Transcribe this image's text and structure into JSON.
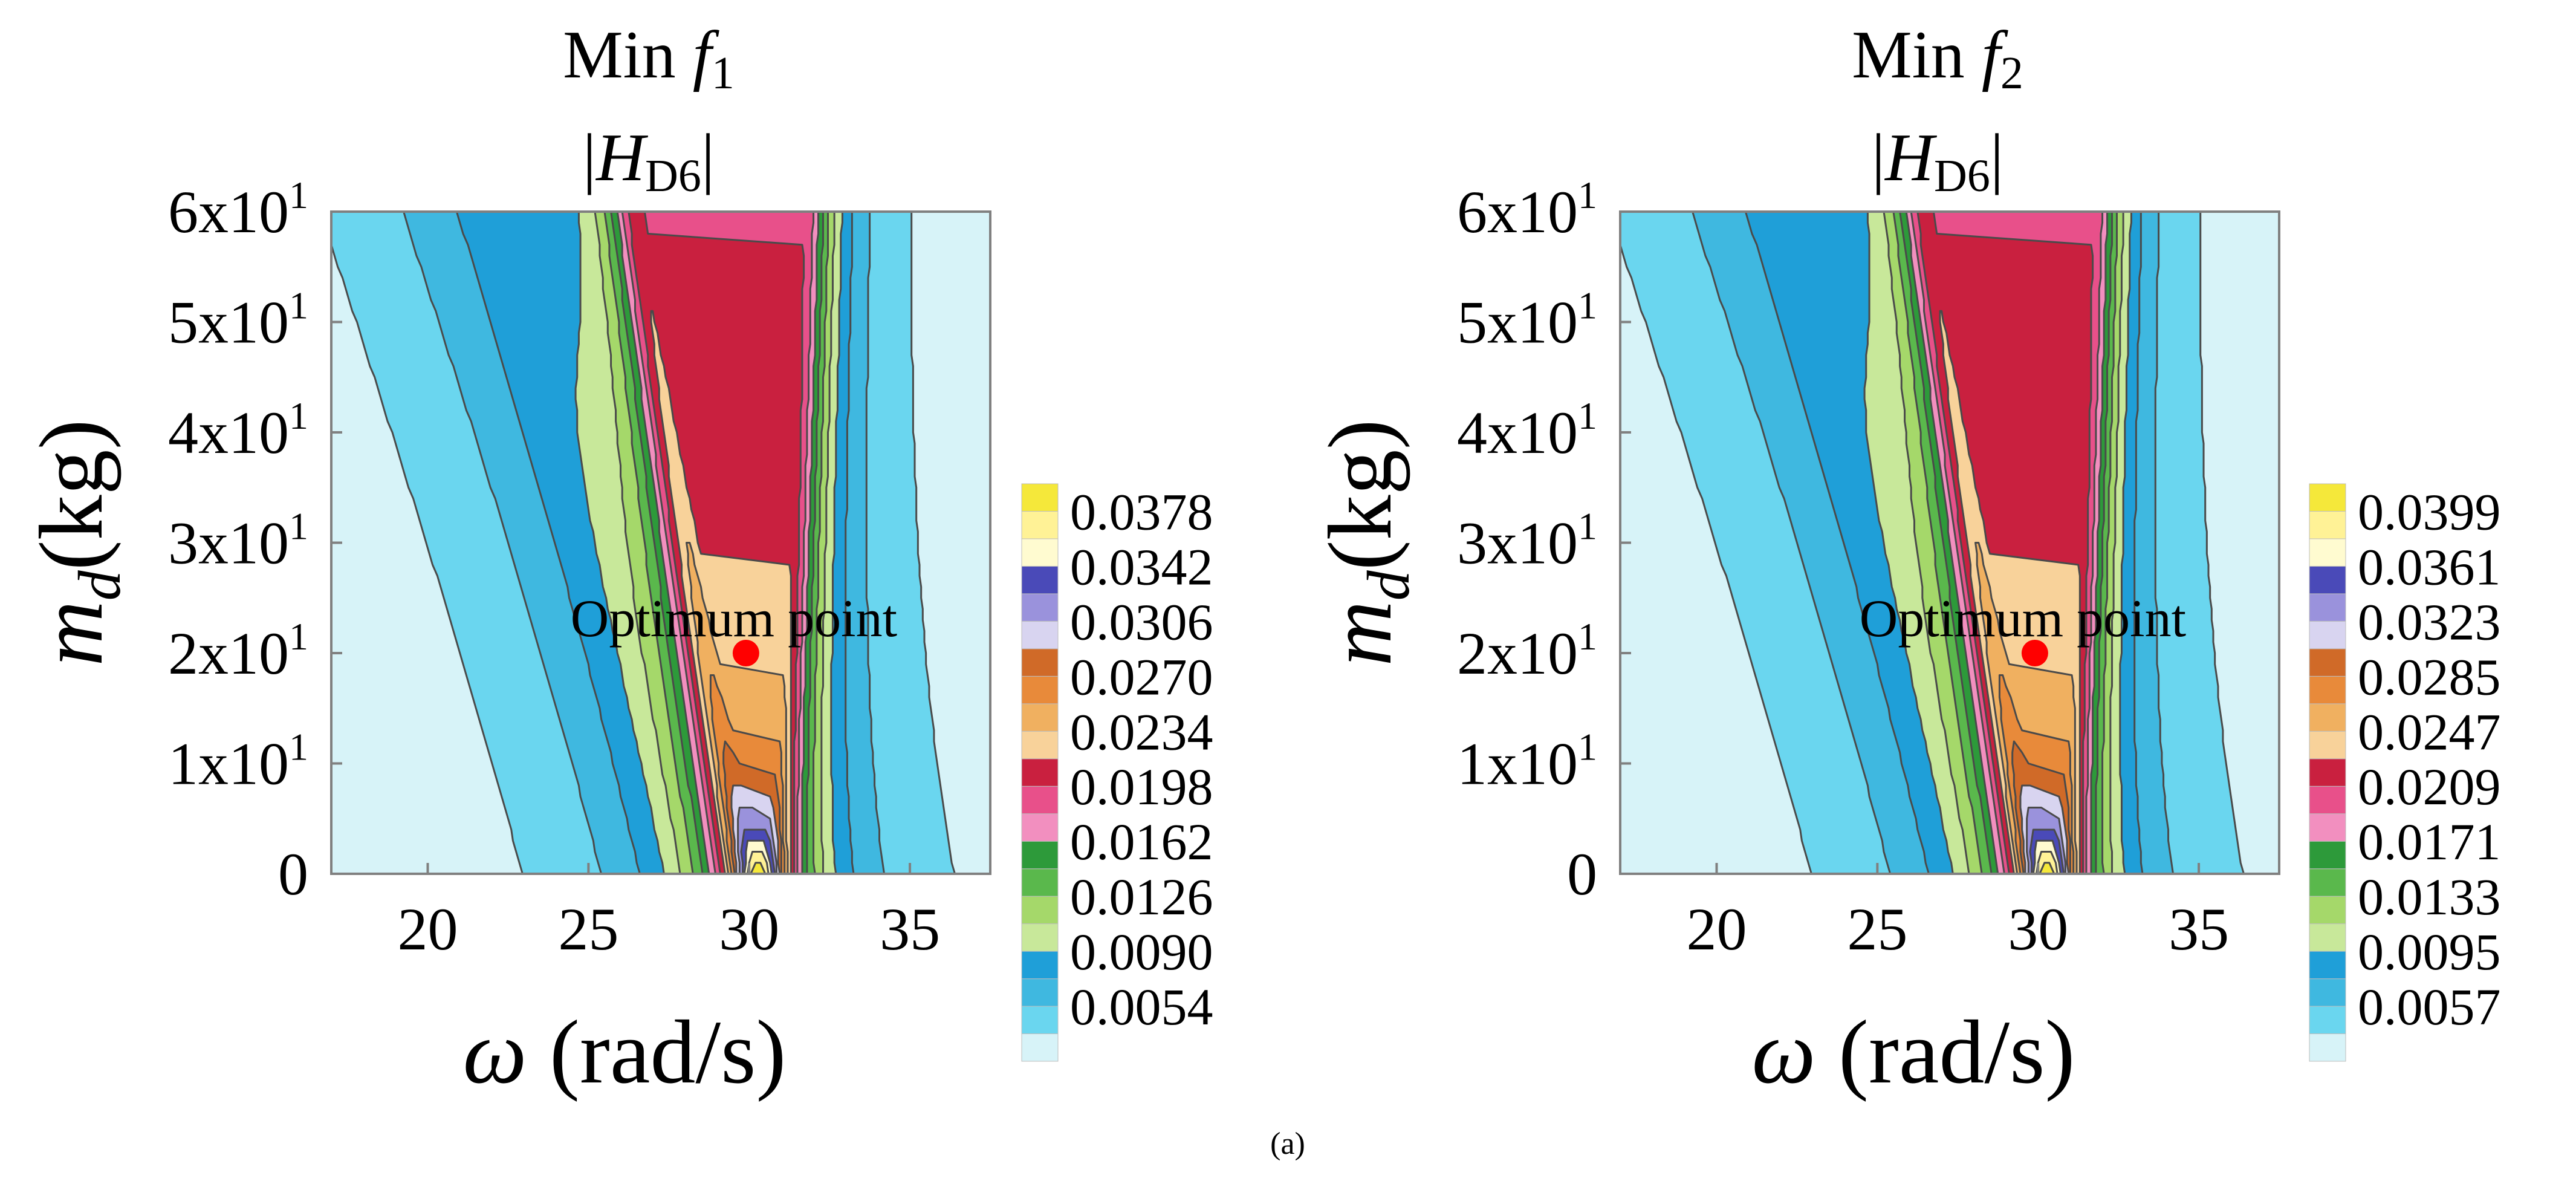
{
  "caption": "(a)",
  "chart_data": [
    {
      "type": "contour",
      "title_line1_main": "Min ",
      "title_line1_var": "f",
      "title_line1_sub": "1",
      "title_line2_open": "|",
      "title_line2_var": "H",
      "title_line2_sub": "D6",
      "title_line2_close": "|",
      "xlabel_var": "ω",
      "xlabel_unit": " (rad/s)",
      "ylabel_var": "m",
      "ylabel_sub": "d",
      "ylabel_unit": "(kg)",
      "xlim": [
        17,
        37.5
      ],
      "ylim": [
        0,
        60
      ],
      "xticks": [
        {
          "value": 20,
          "label": "20"
        },
        {
          "value": 25,
          "label": "25"
        },
        {
          "value": 30,
          "label": "30"
        },
        {
          "value": 35,
          "label": "35"
        }
      ],
      "yticks": [
        {
          "value": 0,
          "label": "0",
          "sup": ""
        },
        {
          "value": 10,
          "label": "1x10",
          "sup": "1"
        },
        {
          "value": 20,
          "label": "2x10",
          "sup": "1"
        },
        {
          "value": 30,
          "label": "3x10",
          "sup": "1"
        },
        {
          "value": 40,
          "label": "4x10",
          "sup": "1"
        },
        {
          "value": 50,
          "label": "5x10",
          "sup": "1"
        },
        {
          "value": 60,
          "label": "6x10",
          "sup": "1"
        }
      ],
      "optimum": {
        "x": 29.9,
        "y": 20,
        "label": "Optimum point",
        "color": "#ff0000"
      },
      "peak_omega": 30.3,
      "levels": [
        0.0018,
        0.0036,
        0.0054,
        0.0072,
        0.009,
        0.0108,
        0.0126,
        0.0144,
        0.0162,
        0.018,
        0.0198,
        0.0216,
        0.0234,
        0.0252,
        0.027,
        0.0288,
        0.0306,
        0.0324,
        0.0342,
        0.036,
        0.0378
      ],
      "colorbar_labels": [
        "0.0378",
        "0.0342",
        "0.0306",
        "0.0270",
        "0.0234",
        "0.0198",
        "0.0162",
        "0.0126",
        "0.0090",
        "0.0054"
      ],
      "colors": [
        "#d7f3f8",
        "#6ad6ef",
        "#3fb8e0",
        "#1f9fd8",
        "#c8e89a",
        "#a5d86a",
        "#5ab84c",
        "#2d9a3a",
        "#f28fbf",
        "#e8508a",
        "#c9203f",
        "#f8d29a",
        "#f0b060",
        "#e88a3a",
        "#d06a28",
        "#d8d4f0",
        "#9a92dc",
        "#4a4ab8",
        "#fffbd0",
        "#fff296",
        "#f5e83a"
      ]
    },
    {
      "type": "contour",
      "title_line1_main": "Min ",
      "title_line1_var": "f",
      "title_line1_sub": "2",
      "title_line2_open": "|",
      "title_line2_var": "H",
      "title_line2_sub": "D6",
      "title_line2_close": "|",
      "xlabel_var": "ω",
      "xlabel_unit": " (rad/s)",
      "ylabel_var": "m",
      "ylabel_sub": "d",
      "ylabel_unit": "(kg)",
      "xlim": [
        17,
        37.5
      ],
      "ylim": [
        0,
        60
      ],
      "xticks": [
        {
          "value": 20,
          "label": "20"
        },
        {
          "value": 25,
          "label": "25"
        },
        {
          "value": 30,
          "label": "30"
        },
        {
          "value": 35,
          "label": "35"
        }
      ],
      "yticks": [
        {
          "value": 0,
          "label": "0",
          "sup": ""
        },
        {
          "value": 10,
          "label": "1x10",
          "sup": "1"
        },
        {
          "value": 20,
          "label": "2x10",
          "sup": "1"
        },
        {
          "value": 30,
          "label": "3x10",
          "sup": "1"
        },
        {
          "value": 40,
          "label": "4x10",
          "sup": "1"
        },
        {
          "value": 50,
          "label": "5x10",
          "sup": "1"
        },
        {
          "value": 60,
          "label": "6x10",
          "sup": "1"
        }
      ],
      "optimum": {
        "x": 29.9,
        "y": 20,
        "label": "Optimum point",
        "color": "#ff0000"
      },
      "peak_omega": 30.3,
      "levels": [
        0.0019,
        0.0038,
        0.0057,
        0.0076,
        0.0095,
        0.0114,
        0.0133,
        0.0152,
        0.0171,
        0.019,
        0.0209,
        0.0228,
        0.0247,
        0.0266,
        0.0285,
        0.0304,
        0.0323,
        0.0342,
        0.0361,
        0.038,
        0.0399
      ],
      "colorbar_labels": [
        "0.0399",
        "0.0361",
        "0.0323",
        "0.0285",
        "0.0247",
        "0.0209",
        "0.0171",
        "0.0133",
        "0.0095",
        "0.0057"
      ],
      "colors": [
        "#d7f3f8",
        "#6ad6ef",
        "#3fb8e0",
        "#1f9fd8",
        "#c8e89a",
        "#a5d86a",
        "#5ab84c",
        "#2d9a3a",
        "#f28fbf",
        "#e8508a",
        "#c9203f",
        "#f8d29a",
        "#f0b060",
        "#e88a3a",
        "#d06a28",
        "#d8d4f0",
        "#9a92dc",
        "#4a4ab8",
        "#fffbd0",
        "#fff296",
        "#f5e83a"
      ]
    }
  ]
}
